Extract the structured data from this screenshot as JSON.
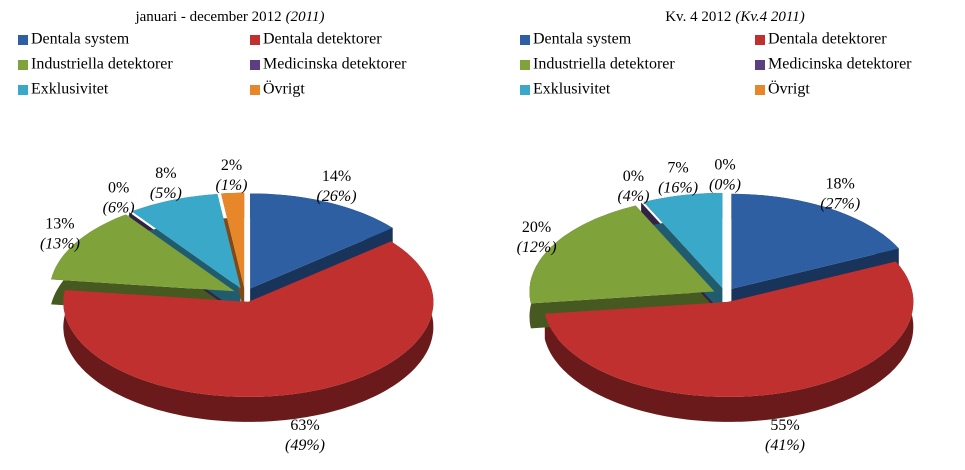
{
  "chart_data": [
    {
      "type": "pie",
      "title": "januari - december 2012",
      "title_compare": "(2011)",
      "categories": [
        "Dentala system",
        "Dentala detektorer",
        "Industriella detektorer",
        "Medicinska detektorer",
        "Exklusivitet",
        "Övrigt"
      ],
      "colors": [
        "#2e5fa3",
        "#c0302f",
        "#7fa23a",
        "#5b3f80",
        "#3aa8c8",
        "#e8862a"
      ],
      "values": [
        14,
        63,
        13,
        0,
        8,
        2
      ],
      "value_labels": [
        "14%",
        "63%",
        "13%",
        "0%",
        "8%",
        "2%"
      ],
      "compare_values": [
        26,
        49,
        13,
        6,
        5,
        1
      ],
      "compare_labels": [
        "(26%)",
        "(49%)",
        "(13%)",
        "(6%)",
        "(5%)",
        "(1%)"
      ]
    },
    {
      "type": "pie",
      "title": "Kv. 4  2012",
      "title_compare": "(Kv.4  2011)",
      "categories": [
        "Dentala system",
        "Dentala detektorer",
        "Industriella detektorer",
        "Medicinska detektorer",
        "Exklusivitet",
        "Övrigt"
      ],
      "colors": [
        "#2e5fa3",
        "#c0302f",
        "#7fa23a",
        "#5b3f80",
        "#3aa8c8",
        "#e8862a"
      ],
      "values": [
        18,
        55,
        20,
        0,
        7,
        0
      ],
      "value_labels": [
        "18%",
        "55%",
        "20%",
        "0%",
        "7%",
        "0%"
      ],
      "compare_values": [
        27,
        41,
        12,
        4,
        16,
        0
      ],
      "compare_labels": [
        "(27%)",
        "(41%)",
        "(12%)",
        "(4%)",
        "(16%)",
        "(0%)"
      ]
    }
  ]
}
